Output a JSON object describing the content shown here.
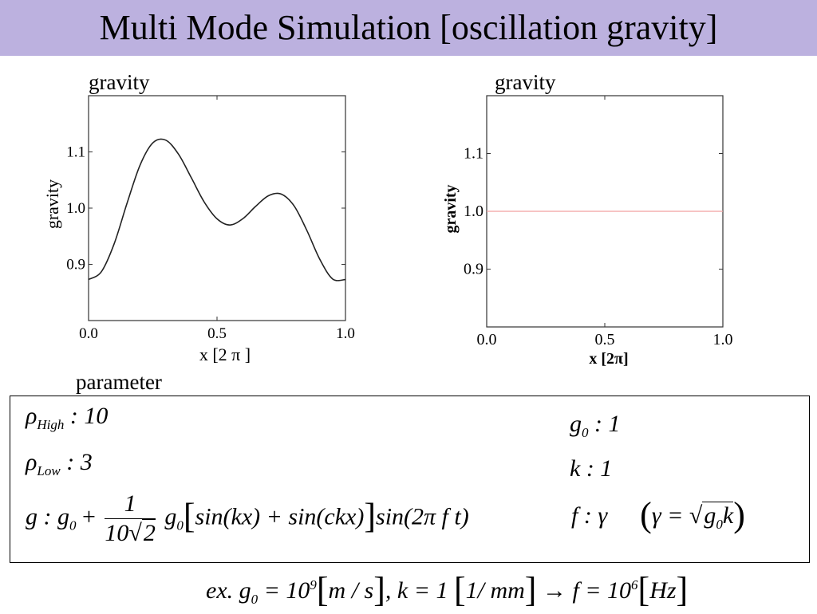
{
  "title": "Multi Mode Simulation [oscillation gravity]",
  "left_plot_caption": "gravity",
  "right_plot_caption": "gravity",
  "parameter_caption": "parameter",
  "colors": {
    "title_bar": "#bcb1df",
    "left_line": "#222222",
    "right_line": "#f2a0a0"
  },
  "chart_data": [
    {
      "type": "line",
      "xlabel": "x [2 π ]",
      "ylabel": "gravity",
      "xlim": [
        0.0,
        1.0
      ],
      "ylim": [
        0.8,
        1.2
      ],
      "xticks": [
        "0.0",
        "0.5",
        "1.0"
      ],
      "yticks": [
        "0.9",
        "1.0",
        "1.1"
      ],
      "series": [
        {
          "x": [
            0.0,
            0.05,
            0.1,
            0.15,
            0.2,
            0.25,
            0.3,
            0.35,
            0.4,
            0.45,
            0.5,
            0.55,
            0.6,
            0.65,
            0.7,
            0.75,
            0.8,
            0.85,
            0.9,
            0.95,
            1.0
          ],
          "y": [
            0.873,
            0.887,
            0.937,
            1.009,
            1.076,
            1.116,
            1.121,
            1.096,
            1.054,
            1.011,
            0.981,
            0.97,
            0.981,
            1.003,
            1.022,
            1.025,
            1.004,
            0.96,
            0.909,
            0.874,
            0.873
          ]
        }
      ]
    },
    {
      "type": "line",
      "xlabel": "x  [2π]",
      "ylabel": "gravity",
      "xlim": [
        0.0,
        1.0
      ],
      "ylim": [
        0.8,
        1.2
      ],
      "xticks": [
        "0.0",
        "0.5",
        "1.0"
      ],
      "yticks": [
        "0.9",
        "1.0",
        "1.1"
      ],
      "series": [
        {
          "x": [
            0.0,
            1.0
          ],
          "y": [
            1.0,
            1.0
          ]
        }
      ]
    }
  ],
  "params": {
    "rho_high": {
      "sym": "ρ",
      "sub": "High",
      "val": ": 10"
    },
    "rho_low": {
      "sym": "ρ",
      "sub": "Low",
      "val": ": 3"
    },
    "g0": {
      "sym": "g",
      "sub": "0",
      "val": ": 1"
    },
    "k": {
      "text": "k : 1"
    },
    "g_formula": {
      "lhs": "g : g",
      "sub0": "0",
      "plus": "+",
      "num": "1",
      "den": "10",
      "den_root": "2",
      "g": "g",
      "sub1": "0",
      "bl": "[",
      "body": "sin(kx) + sin(ckx)",
      "br": "]",
      "tail": "sin(2π f t)"
    },
    "f_formula": {
      "lhs": "f : γ",
      "open": "(",
      "mid": "γ = ",
      "root": "g",
      "root_sub": "0",
      "root_tail": "k",
      "close": ")"
    }
  },
  "example": {
    "text1": "ex. g",
    "sub": "0",
    "text2": " = 10",
    "sup1": "9",
    "b1": "[",
    "u1": "m / s",
    "b1c": "]",
    "text3": ", k = 1 ",
    "b2": "[",
    "u2": "1/ mm",
    "b2c": "]",
    "arrow": " → f = 10",
    "sup2": "6",
    "b3": "[",
    "u3": "Hz",
    "b3c": "]"
  }
}
